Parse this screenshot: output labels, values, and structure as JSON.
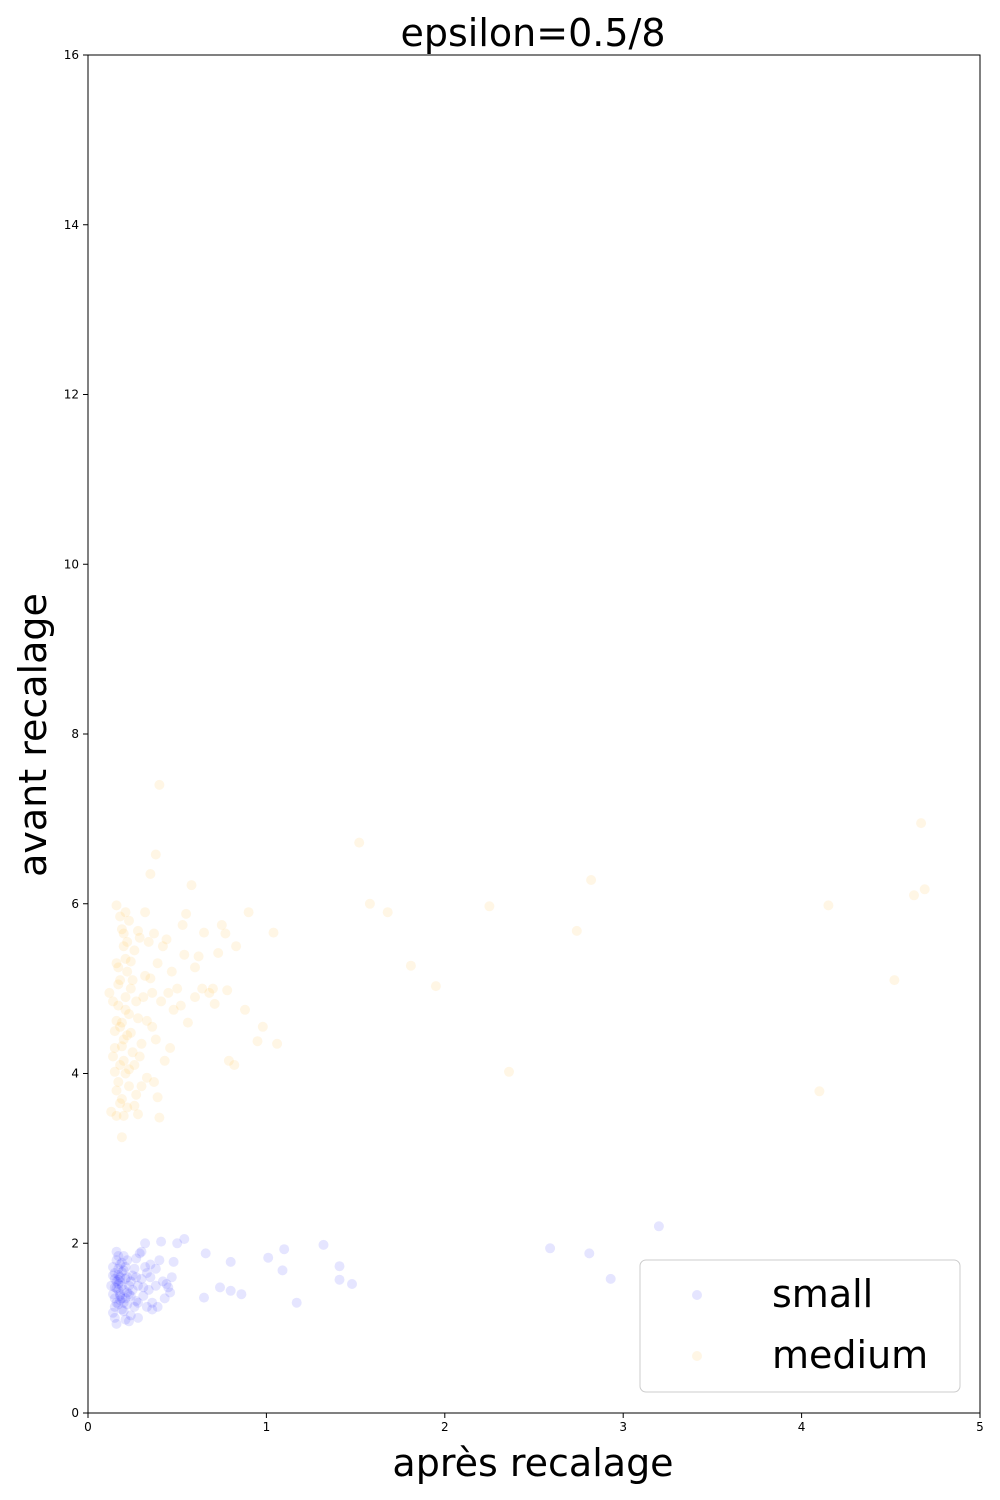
{
  "chart_data": {
    "type": "scatter",
    "title": "epsilon=0.5/8",
    "xlabel": "après recalage",
    "ylabel": "avant recalage",
    "xlim": [
      0,
      5
    ],
    "ylim": [
      0,
      16
    ],
    "xticks": [
      "0",
      "1",
      "2",
      "3",
      "4",
      "5"
    ],
    "yticks": [
      "0",
      "2",
      "4",
      "6",
      "8",
      "10",
      "12",
      "14",
      "16"
    ],
    "grid": false,
    "legend_position": "lower-right",
    "series": [
      {
        "name": "small",
        "color": "#0000ff",
        "points": [
          [
            0.14,
            1.62
          ],
          [
            0.15,
            1.48
          ],
          [
            0.16,
            1.55
          ],
          [
            0.17,
            1.7
          ],
          [
            0.18,
            1.4
          ],
          [
            0.15,
            1.35
          ],
          [
            0.16,
            1.8
          ],
          [
            0.17,
            1.28
          ],
          [
            0.18,
            1.6
          ],
          [
            0.19,
            1.5
          ],
          [
            0.2,
            1.45
          ],
          [
            0.14,
            1.72
          ],
          [
            0.15,
            1.25
          ],
          [
            0.16,
            1.9
          ],
          [
            0.17,
            1.52
          ],
          [
            0.18,
            1.38
          ],
          [
            0.19,
            1.66
          ],
          [
            0.2,
            1.3
          ],
          [
            0.21,
            1.58
          ],
          [
            0.22,
            1.42
          ],
          [
            0.14,
            1.18
          ],
          [
            0.15,
            1.12
          ],
          [
            0.16,
            1.05
          ],
          [
            0.17,
            1.85
          ],
          [
            0.18,
            1.75
          ],
          [
            0.19,
            1.22
          ],
          [
            0.2,
            1.68
          ],
          [
            0.21,
            1.35
          ],
          [
            0.22,
            1.8
          ],
          [
            0.23,
            1.5
          ],
          [
            0.15,
            1.58
          ],
          [
            0.16,
            1.47
          ],
          [
            0.17,
            1.63
          ],
          [
            0.18,
            1.33
          ],
          [
            0.19,
            1.77
          ],
          [
            0.2,
            1.2
          ],
          [
            0.21,
            1.1
          ],
          [
            0.22,
            1.6
          ],
          [
            0.23,
            1.4
          ],
          [
            0.24,
            1.55
          ],
          [
            0.13,
            1.5
          ],
          [
            0.14,
            1.4
          ],
          [
            0.15,
            1.65
          ],
          [
            0.16,
            1.3
          ],
          [
            0.17,
            1.45
          ],
          [
            0.18,
            1.55
          ],
          [
            0.19,
            1.35
          ],
          [
            0.2,
            1.85
          ],
          [
            0.21,
            1.72
          ],
          [
            0.22,
            1.28
          ],
          [
            0.25,
            1.45
          ],
          [
            0.26,
            1.7
          ],
          [
            0.27,
            1.32
          ],
          [
            0.28,
            1.5
          ],
          [
            0.25,
            1.62
          ],
          [
            0.26,
            1.25
          ],
          [
            0.27,
            1.82
          ],
          [
            0.24,
            1.15
          ],
          [
            0.23,
            1.08
          ],
          [
            0.28,
            1.12
          ],
          [
            0.3,
            1.58
          ],
          [
            0.31,
            1.38
          ],
          [
            0.32,
            1.72
          ],
          [
            0.33,
            1.25
          ],
          [
            0.34,
            1.45
          ],
          [
            0.35,
            1.6
          ],
          [
            0.3,
            1.9
          ],
          [
            0.32,
            2.0
          ],
          [
            0.36,
            1.3
          ],
          [
            0.38,
            1.5
          ],
          [
            0.4,
            1.8
          ],
          [
            0.42,
            1.55
          ],
          [
            0.41,
            2.02
          ],
          [
            0.43,
            1.35
          ],
          [
            0.45,
            1.48
          ],
          [
            0.47,
            1.6
          ],
          [
            0.48,
            1.78
          ],
          [
            0.5,
            2.0
          ],
          [
            0.38,
            1.7
          ],
          [
            0.36,
            1.22
          ],
          [
            0.39,
            1.25
          ],
          [
            0.44,
            1.52
          ],
          [
            0.46,
            1.42
          ],
          [
            0.35,
            1.75
          ],
          [
            0.29,
            1.88
          ],
          [
            0.27,
            1.6
          ],
          [
            0.33,
            1.65
          ],
          [
            0.31,
            1.48
          ],
          [
            0.28,
            1.3
          ],
          [
            0.24,
            1.38
          ],
          [
            0.54,
            2.05
          ],
          [
            0.66,
            1.88
          ],
          [
            0.65,
            1.36
          ],
          [
            0.74,
            1.48
          ],
          [
            0.8,
            1.78
          ],
          [
            0.8,
            1.44
          ],
          [
            0.86,
            1.4
          ],
          [
            1.01,
            1.83
          ],
          [
            1.09,
            1.68
          ],
          [
            1.1,
            1.93
          ],
          [
            1.17,
            1.3
          ],
          [
            1.32,
            1.98
          ],
          [
            1.41,
            1.73
          ],
          [
            1.41,
            1.57
          ],
          [
            1.48,
            1.52
          ],
          [
            2.59,
            1.94
          ],
          [
            2.81,
            1.88
          ],
          [
            2.93,
            1.58
          ],
          [
            3.2,
            2.2
          ],
          [
            0.17,
            1.57
          ]
        ]
      },
      {
        "name": "medium",
        "color": "#ffa500",
        "points": [
          [
            0.12,
            4.95
          ],
          [
            0.13,
            3.55
          ],
          [
            0.14,
            4.2
          ],
          [
            0.15,
            4.5
          ],
          [
            0.16,
            5.98
          ],
          [
            0.16,
            5.3
          ],
          [
            0.17,
            4.8
          ],
          [
            0.17,
            3.9
          ],
          [
            0.18,
            4.1
          ],
          [
            0.18,
            5.1
          ],
          [
            0.19,
            4.6
          ],
          [
            0.19,
            3.7
          ],
          [
            0.2,
            4.4
          ],
          [
            0.2,
            5.5
          ],
          [
            0.21,
            4.0
          ],
          [
            0.21,
            4.9
          ],
          [
            0.22,
            5.2
          ],
          [
            0.22,
            3.6
          ],
          [
            0.23,
            4.7
          ],
          [
            0.23,
            5.8
          ],
          [
            0.14,
            4.85
          ],
          [
            0.15,
            4.3
          ],
          [
            0.16,
            3.8
          ],
          [
            0.17,
            5.25
          ],
          [
            0.18,
            4.55
          ],
          [
            0.19,
            5.7
          ],
          [
            0.2,
            4.15
          ],
          [
            0.21,
            5.35
          ],
          [
            0.22,
            4.45
          ],
          [
            0.23,
            4.05
          ],
          [
            0.24,
            5.0
          ],
          [
            0.25,
            4.25
          ],
          [
            0.26,
            5.45
          ],
          [
            0.27,
            3.75
          ],
          [
            0.28,
            4.65
          ],
          [
            0.29,
            5.6
          ],
          [
            0.3,
            4.35
          ],
          [
            0.31,
            4.9
          ],
          [
            0.32,
            5.15
          ],
          [
            0.33,
            3.95
          ],
          [
            0.15,
            4.02
          ],
          [
            0.16,
            4.62
          ],
          [
            0.17,
            5.05
          ],
          [
            0.18,
            3.65
          ],
          [
            0.19,
            4.32
          ],
          [
            0.2,
            3.5
          ],
          [
            0.21,
            4.75
          ],
          [
            0.22,
            5.55
          ],
          [
            0.23,
            3.85
          ],
          [
            0.24,
            4.48
          ],
          [
            0.19,
            3.25
          ],
          [
            0.16,
            3.5
          ],
          [
            0.18,
            5.85
          ],
          [
            0.2,
            5.65
          ],
          [
            0.21,
            5.9
          ],
          [
            0.25,
            5.1
          ],
          [
            0.26,
            4.1
          ],
          [
            0.27,
            4.85
          ],
          [
            0.28,
            3.52
          ],
          [
            0.29,
            4.2
          ],
          [
            0.34,
            5.55
          ],
          [
            0.35,
            6.35
          ],
          [
            0.36,
            4.95
          ],
          [
            0.37,
            5.65
          ],
          [
            0.38,
            6.58
          ],
          [
            0.38,
            4.4
          ],
          [
            0.39,
            5.3
          ],
          [
            0.4,
            7.4
          ],
          [
            0.4,
            3.48
          ],
          [
            0.41,
            4.85
          ],
          [
            0.42,
            5.5
          ],
          [
            0.43,
            4.15
          ],
          [
            0.44,
            5.58
          ],
          [
            0.45,
            4.95
          ],
          [
            0.46,
            4.3
          ],
          [
            0.47,
            5.2
          ],
          [
            0.48,
            4.75
          ],
          [
            0.5,
            5.0
          ],
          [
            0.52,
            4.8
          ],
          [
            0.53,
            5.75
          ],
          [
            0.54,
            5.4
          ],
          [
            0.55,
            5.88
          ],
          [
            0.56,
            4.6
          ],
          [
            0.58,
            6.22
          ],
          [
            0.6,
            4.9
          ],
          [
            0.6,
            5.25
          ],
          [
            0.62,
            5.38
          ],
          [
            0.64,
            5.0
          ],
          [
            0.65,
            5.66
          ],
          [
            0.68,
            4.95
          ],
          [
            0.7,
            5.0
          ],
          [
            0.71,
            4.82
          ],
          [
            0.73,
            5.42
          ],
          [
            0.75,
            5.75
          ],
          [
            0.77,
            5.65
          ],
          [
            0.78,
            4.98
          ],
          [
            0.79,
            4.15
          ],
          [
            0.82,
            4.1
          ],
          [
            0.83,
            5.5
          ],
          [
            0.88,
            4.75
          ],
          [
            0.9,
            5.9
          ],
          [
            0.95,
            4.38
          ],
          [
            0.98,
            4.55
          ],
          [
            1.04,
            5.66
          ],
          [
            1.06,
            4.35
          ],
          [
            1.52,
            6.72
          ],
          [
            1.58,
            6.0
          ],
          [
            1.68,
            5.9
          ],
          [
            1.81,
            5.27
          ],
          [
            1.95,
            5.03
          ],
          [
            2.25,
            5.97
          ],
          [
            2.36,
            4.02
          ],
          [
            2.74,
            5.68
          ],
          [
            2.82,
            6.28
          ],
          [
            4.1,
            3.79
          ],
          [
            4.15,
            5.98
          ],
          [
            4.52,
            5.1
          ],
          [
            4.63,
            6.1
          ],
          [
            4.67,
            6.95
          ],
          [
            4.69,
            6.17
          ],
          [
            0.36,
            4.55
          ],
          [
            0.37,
            3.9
          ],
          [
            0.39,
            3.72
          ],
          [
            0.32,
            5.9
          ],
          [
            0.3,
            3.85
          ],
          [
            0.33,
            4.62
          ],
          [
            0.35,
            5.12
          ],
          [
            0.28,
            5.68
          ],
          [
            0.26,
            3.62
          ],
          [
            0.24,
            5.32
          ]
        ]
      }
    ]
  }
}
